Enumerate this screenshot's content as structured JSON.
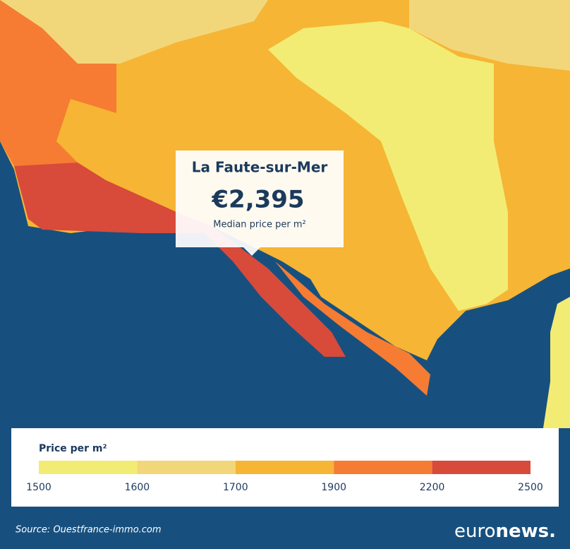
{
  "tooltip": {
    "place": "La Faute-sur-Mer",
    "value": "€2,395",
    "caption": "Median price per m²"
  },
  "legend": {
    "title": "Price per m²",
    "colors": [
      "#f2ec74",
      "#f2d77a",
      "#f6b534",
      "#f57c32",
      "#d84a3a"
    ],
    "ticks": [
      1500,
      1600,
      1700,
      1900,
      2200,
      2500
    ]
  },
  "source": "Source: Ouestfrance-immo.com",
  "logo": [
    "euro",
    "news."
  ]
}
